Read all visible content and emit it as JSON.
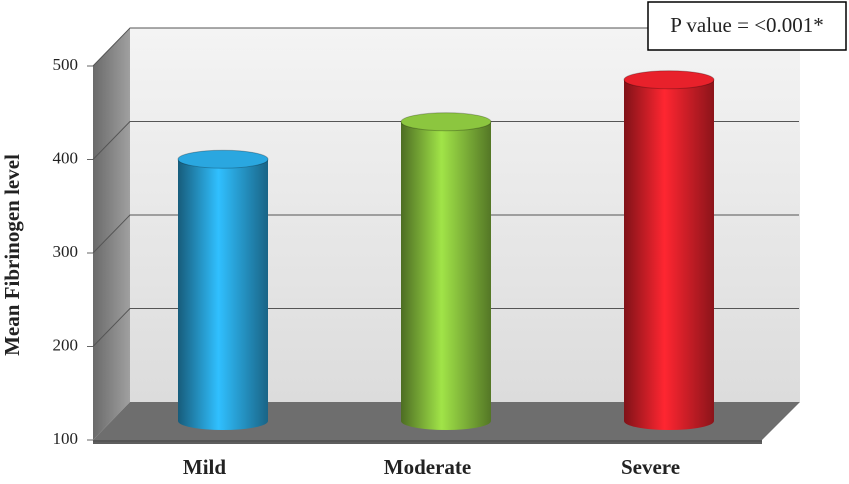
{
  "chart_data": {
    "type": "bar3d",
    "y_label": "Mean Fibrinogen level",
    "categories": [
      "Mild",
      "Moderate",
      "Severe"
    ],
    "values": [
      380,
      420,
      465
    ],
    "colors": [
      "#2aa7e0",
      "#8cc63f",
      "#e8212b"
    ],
    "ylim": [
      100,
      500
    ],
    "yticks": [
      100,
      200,
      300,
      400,
      500
    ],
    "grid": true,
    "annotation": "P value = <0.001*"
  }
}
